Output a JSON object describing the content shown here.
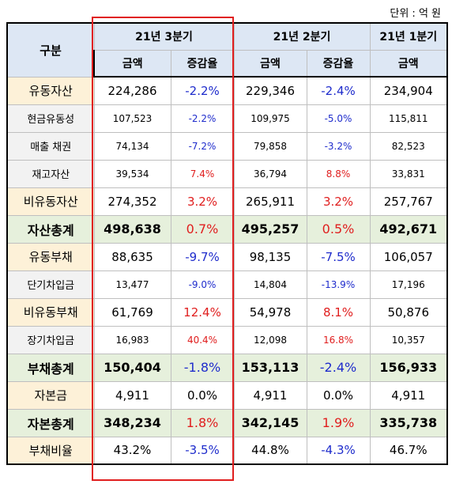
{
  "unit": "단위 : 억 원",
  "header": {
    "category": "구분",
    "periods": [
      "21년 3분기",
      "21년 2분기",
      "21년 1분기"
    ],
    "amount": "금액",
    "change": "증감율"
  },
  "rows": [
    {
      "label": "유동자산",
      "q3": "224,286",
      "q3c": "-2.2%",
      "q2": "229,346",
      "q2c": "-2.4%",
      "q1": "234,904"
    },
    {
      "label": "현금유동성",
      "q3": "107,523",
      "q3c": "-2.2%",
      "q2": "109,975",
      "q2c": "-5.0%",
      "q1": "115,811"
    },
    {
      "label": "매출 채권",
      "q3": "74,134",
      "q3c": "-7.2%",
      "q2": "79,858",
      "q2c": "-3.2%",
      "q1": "82,523"
    },
    {
      "label": "재고자산",
      "q3": "39,534",
      "q3c": "7.4%",
      "q2": "36,794",
      "q2c": "8.8%",
      "q1": "33,831"
    },
    {
      "label": "비유동자산",
      "q3": "274,352",
      "q3c": "3.2%",
      "q2": "265,911",
      "q2c": "3.2%",
      "q1": "257,767"
    },
    {
      "label": "자산총계",
      "q3": "498,638",
      "q3c": "0.7%",
      "q2": "495,257",
      "q2c": "0.5%",
      "q1": "492,671"
    },
    {
      "label": "유동부채",
      "q3": "88,635",
      "q3c": "-9.7%",
      "q2": "98,135",
      "q2c": "-7.5%",
      "q1": "106,057"
    },
    {
      "label": "단기차입금",
      "q3": "13,477",
      "q3c": "-9.0%",
      "q2": "14,804",
      "q2c": "-13.9%",
      "q1": "17,196"
    },
    {
      "label": "비유동부채",
      "q3": "61,769",
      "q3c": "12.4%",
      "q2": "54,978",
      "q2c": "8.1%",
      "q1": "50,876"
    },
    {
      "label": "장기차입금",
      "q3": "16,983",
      "q3c": "40.4%",
      "q2": "12,098",
      "q2c": "16.8%",
      "q1": "10,357"
    },
    {
      "label": "부채총계",
      "q3": "150,404",
      "q3c": "-1.8%",
      "q2": "153,113",
      "q2c": "-2.4%",
      "q1": "156,933"
    },
    {
      "label": "자본금",
      "q3": "4,911",
      "q3c": "0.0%",
      "q2": "4,911",
      "q2c": "0.0%",
      "q1": "4,911"
    },
    {
      "label": "자본총계",
      "q3": "348,234",
      "q3c": "1.8%",
      "q2": "342,145",
      "q2c": "1.9%",
      "q1": "335,738"
    },
    {
      "label": "부채비율",
      "q3": "43.2%",
      "q3c": "-3.5%",
      "q2": "44.8%",
      "q2c": "-4.3%",
      "q1": "46.7%"
    }
  ],
  "colors": {
    "negative": "#1f2ccc",
    "positive": "#e01e1e",
    "header_bg": "#dde7f4",
    "label_bg": "#fdf1d8",
    "minor_label_bg": "#f2f2f2",
    "total_bg": "#e6f0dc",
    "highlight_border": "#e01e1e"
  }
}
